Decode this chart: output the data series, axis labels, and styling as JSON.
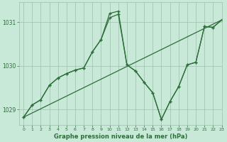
{
  "background_color": "#c8e8d8",
  "grid_color": "#9dbfad",
  "line_color": "#2d6e3a",
  "title": "Graphe pression niveau de la mer (hPa)",
  "xlim": [
    -0.5,
    23
  ],
  "ylim": [
    1028.65,
    1031.45
  ],
  "yticks": [
    1029,
    1030,
    1031
  ],
  "xticks": [
    0,
    1,
    2,
    3,
    4,
    5,
    6,
    7,
    8,
    9,
    10,
    11,
    12,
    13,
    14,
    15,
    16,
    17,
    18,
    19,
    20,
    21,
    22,
    23
  ],
  "line_straight": {
    "x": [
      0,
      23
    ],
    "y": [
      1028.82,
      1031.05
    ]
  },
  "line_zigzag1": {
    "x": [
      0,
      1,
      2,
      3,
      4,
      5,
      6,
      7,
      8,
      9,
      10,
      11,
      12,
      13,
      14,
      15,
      16,
      17,
      18,
      19,
      20,
      21,
      22,
      23
    ],
    "y": [
      1028.82,
      1029.1,
      1029.22,
      1029.55,
      1029.72,
      1029.82,
      1029.9,
      1029.95,
      1030.32,
      1030.6,
      1031.2,
      1031.25,
      1030.02,
      1029.88,
      1029.62,
      1029.38,
      1028.77,
      1029.18,
      1029.52,
      1030.02,
      1030.08,
      1030.9,
      1030.88,
      1031.05
    ]
  },
  "line_zigzag2": {
    "x": [
      0,
      1,
      2,
      3,
      4,
      5,
      6,
      7,
      8,
      9,
      10,
      11,
      12,
      13,
      14,
      15,
      16,
      17,
      18,
      19,
      20,
      21,
      22,
      23
    ],
    "y": [
      1028.82,
      1029.1,
      1029.22,
      1029.55,
      1029.72,
      1029.82,
      1029.9,
      1029.95,
      1030.32,
      1030.6,
      1031.1,
      1031.18,
      1030.02,
      1029.88,
      1029.62,
      1029.38,
      1028.77,
      1029.18,
      1029.52,
      1030.02,
      1030.08,
      1030.9,
      1030.88,
      1031.05
    ]
  },
  "title_fontsize": 6,
  "tick_fontsize": 4.5,
  "line_width": 0.9,
  "marker_size": 3.5
}
